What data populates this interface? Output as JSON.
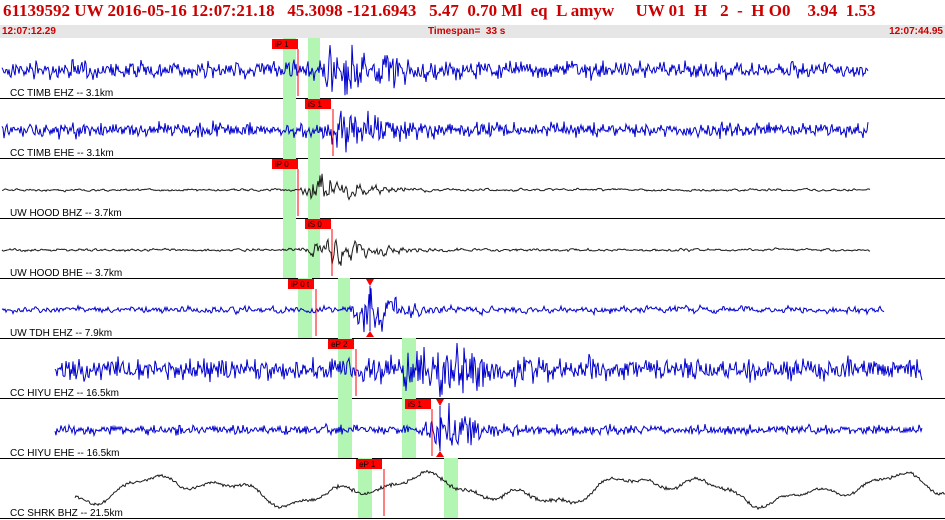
{
  "header": {
    "title": "61139592 UW 2016-05-16 12:07:21.18   45.3098 -121.6943   5.47  0.70 Ml  eq  L amyw     UW 01  H   2  -  H O0    3.94  1.53",
    "start_time": "12:07:12.29",
    "timespan": "Timespan=  33 s",
    "end_time": "12:07:44.95"
  },
  "colors": {
    "trace_blue": "#0000cc",
    "trace_black": "#1a1a1a",
    "pick_red": "#ff0000",
    "window_green": "#b3f5b3",
    "title_red": "#cc0000"
  },
  "traces": [
    {
      "label": "CC TIMB EHZ -- 3.1km",
      "pick": "iP 1",
      "color": "blue"
    },
    {
      "label": "CC TIMB EHE -- 3.1km",
      "pick": "iS 1",
      "color": "blue"
    },
    {
      "label": "UW HOOD BHZ -- 3.7km",
      "pick": "iP 0",
      "color": "black"
    },
    {
      "label": "UW HOOD BHE -- 3.7km",
      "pick": "iS 0",
      "color": "black"
    },
    {
      "label": "UW TDH EHZ -- 7.9km",
      "pick": "iP 0 t",
      "color": "blue"
    },
    {
      "label": "CC HIYU EHZ -- 16.5km",
      "pick": "eP 2",
      "color": "blue"
    },
    {
      "label": "CC HIYU EHE -- 16.5km",
      "pick": "iS 1",
      "color": "blue"
    },
    {
      "label": "CC SHRK BHZ -- 21.5km",
      "pick": "eP 1",
      "color": "black"
    }
  ]
}
